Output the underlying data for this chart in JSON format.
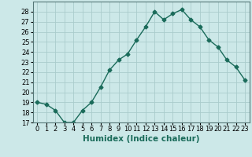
{
  "x": [
    0,
    1,
    2,
    3,
    4,
    5,
    6,
    7,
    8,
    9,
    10,
    11,
    12,
    13,
    14,
    15,
    16,
    17,
    18,
    19,
    20,
    21,
    22,
    23
  ],
  "y": [
    19,
    18.8,
    18.2,
    17.0,
    17.0,
    18.2,
    19.0,
    20.5,
    22.2,
    23.2,
    23.8,
    25.2,
    26.5,
    28.0,
    27.2,
    27.8,
    28.2,
    27.2,
    26.5,
    25.2,
    24.5,
    23.2,
    22.5,
    21.2
  ],
  "line_color": "#1a6b5a",
  "marker": "D",
  "markersize": 2.5,
  "linewidth": 1.0,
  "xlabel": "Humidex (Indice chaleur)",
  "ylim": [
    17,
    29
  ],
  "xlim": [
    -0.5,
    23.5
  ],
  "yticks": [
    17,
    18,
    19,
    20,
    21,
    22,
    23,
    24,
    25,
    26,
    27,
    28
  ],
  "xtick_labels": [
    "0",
    "1",
    "2",
    "3",
    "4",
    "5",
    "6",
    "7",
    "8",
    "9",
    "10",
    "11",
    "12",
    "13",
    "14",
    "15",
    "16",
    "17",
    "18",
    "19",
    "20",
    "21",
    "22",
    "23"
  ],
  "bg_color": "#cce8e8",
  "grid_color": "#aacccc",
  "label_fontsize": 7.5,
  "tick_fontsize": 6.0
}
